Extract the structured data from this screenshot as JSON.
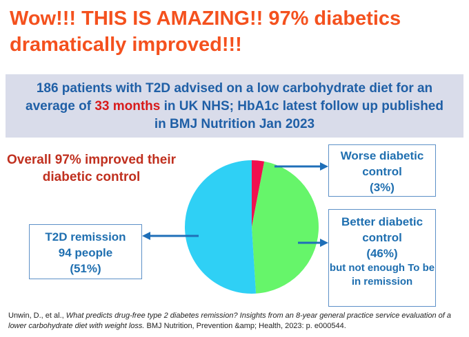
{
  "header": {
    "title": "Wow!!! THIS IS AMAZING!! 97% diabetics dramatically improved!!!"
  },
  "chart_data": {
    "type": "pie",
    "title": [
      "186 patients with T2D advised on a low carbohydrate diet for an average of ",
      "33 months",
      " in UK NHS; HbA1c latest follow up published in BMJ Nutrition Jan 2023"
    ],
    "categories": [
      "Worse diabetic control",
      "Better diabetic control",
      "T2D remission"
    ],
    "values": [
      3,
      46,
      51
    ],
    "value_labels": [
      "(3%)",
      "(46%)",
      "(51%)"
    ],
    "colors": [
      "#f0104f",
      "#66f56a",
      "#2fd0f5"
    ],
    "annotations": [
      "Overall 97% improved their diabetic control",
      "94 people",
      "but not enough To be in remission"
    ]
  },
  "source": [
    "Unwin, D., et al., ",
    "What predicts drug-free type 2 diabetes remission? Insights from an 8-year general practice service evaluation of a lower carbohydrate diet with weight loss.",
    " BMJ Nutrition, Prevention &amp; Health, 2023: p. e000544."
  ]
}
